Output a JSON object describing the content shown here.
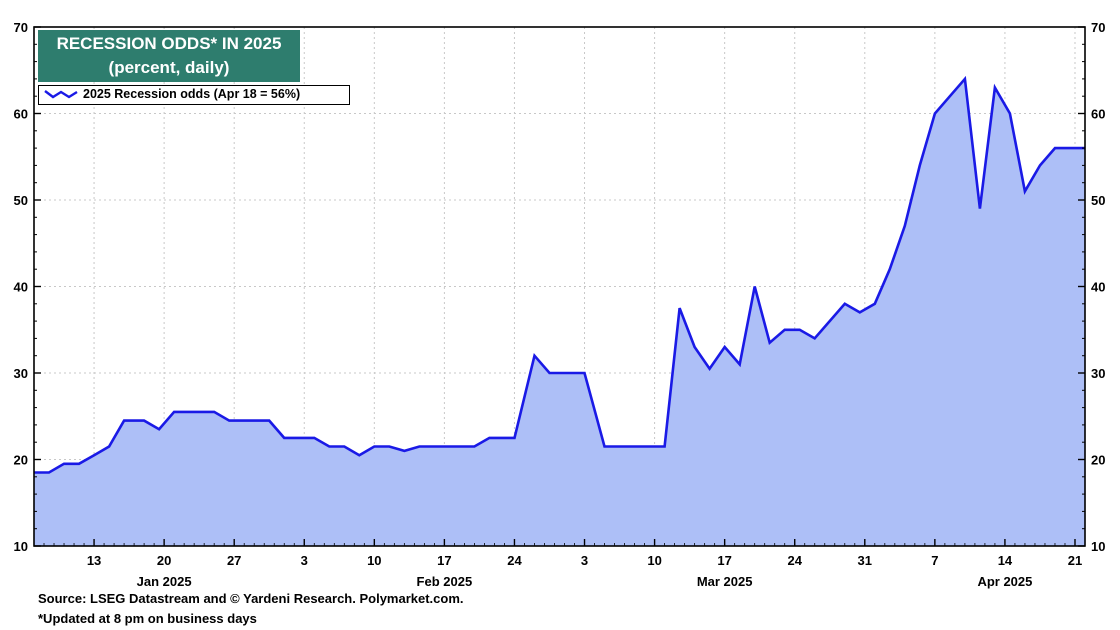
{
  "chart_data": {
    "type": "area",
    "title": "RECESSION ODDS* IN 2025",
    "subtitle": "(percent, daily)",
    "legend": {
      "label": "2025 Recession odds (Apr 18 = 56%)",
      "placement": "top-left"
    },
    "ylim": [
      10,
      70
    ],
    "yticks": [
      10,
      20,
      30,
      40,
      50,
      60,
      70
    ],
    "xlim_day_index": [
      0,
      105
    ],
    "day_ticks": [
      {
        "label": "13",
        "day": 6
      },
      {
        "label": "20",
        "day": 13
      },
      {
        "label": "27",
        "day": 20
      },
      {
        "label": "3",
        "day": 27
      },
      {
        "label": "10",
        "day": 34
      },
      {
        "label": "17",
        "day": 41
      },
      {
        "label": "24",
        "day": 48
      },
      {
        "label": "3",
        "day": 55
      },
      {
        "label": "10",
        "day": 62
      },
      {
        "label": "17",
        "day": 69
      },
      {
        "label": "24",
        "day": 76
      },
      {
        "label": "31",
        "day": 83
      },
      {
        "label": "7",
        "day": 90
      },
      {
        "label": "14",
        "day": 97
      },
      {
        "label": "21",
        "day": 104
      }
    ],
    "month_labels": [
      {
        "label": "Jan 2025",
        "day": 13
      },
      {
        "label": "Feb 2025",
        "day": 41
      },
      {
        "label": "Mar 2025",
        "day": 69
      },
      {
        "label": "Apr 2025",
        "day": 97
      }
    ],
    "series": [
      {
        "name": "2025 Recession odds",
        "line_color": "#1a1ae6",
        "fill_color": "#adbff7",
        "points": [
          [
            0,
            18.5
          ],
          [
            1.5,
            18.5
          ],
          [
            3,
            19.5
          ],
          [
            4.5,
            19.5
          ],
          [
            6,
            20.5
          ],
          [
            7.5,
            21.5
          ],
          [
            9,
            24.5
          ],
          [
            11,
            24.5
          ],
          [
            12.5,
            23.5
          ],
          [
            14,
            25.5
          ],
          [
            18,
            25.5
          ],
          [
            19.5,
            24.5
          ],
          [
            23.5,
            24.5
          ],
          [
            25,
            22.5
          ],
          [
            28,
            22.5
          ],
          [
            29.5,
            21.5
          ],
          [
            31,
            21.5
          ],
          [
            32.5,
            20.5
          ],
          [
            34,
            21.5
          ],
          [
            35.5,
            21.5
          ],
          [
            37,
            21.0
          ],
          [
            38.5,
            21.5
          ],
          [
            44,
            21.5
          ],
          [
            45.5,
            22.5
          ],
          [
            48,
            22.5
          ],
          [
            50,
            32.0
          ],
          [
            51.5,
            30.0
          ],
          [
            55,
            30.0
          ],
          [
            57,
            21.5
          ],
          [
            63,
            21.5
          ],
          [
            64.5,
            37.5
          ],
          [
            66,
            33.0
          ],
          [
            67.5,
            30.5
          ],
          [
            69,
            33.0
          ],
          [
            70.5,
            31.0
          ],
          [
            72,
            40.0
          ],
          [
            73.5,
            33.5
          ],
          [
            75,
            35.0
          ],
          [
            76.5,
            35.0
          ],
          [
            78,
            34.0
          ],
          [
            81,
            38.0
          ],
          [
            82.5,
            37.0
          ],
          [
            84,
            38.0
          ],
          [
            85.5,
            42.0
          ],
          [
            87,
            47.0
          ],
          [
            88.5,
            54.0
          ],
          [
            90,
            60.0
          ],
          [
            91.5,
            62.0
          ],
          [
            93,
            64.0
          ],
          [
            94.5,
            49.0
          ],
          [
            96,
            63.0
          ],
          [
            97.5,
            60.0
          ],
          [
            99,
            51.0
          ],
          [
            100.5,
            54.0
          ],
          [
            102,
            56.0
          ],
          [
            105,
            56.0
          ]
        ]
      }
    ]
  },
  "footnotes": {
    "source": "Source: LSEG Datastream and © Yardeni Research. Polymarket.com.",
    "note": "*Updated at 8 pm on business days"
  }
}
